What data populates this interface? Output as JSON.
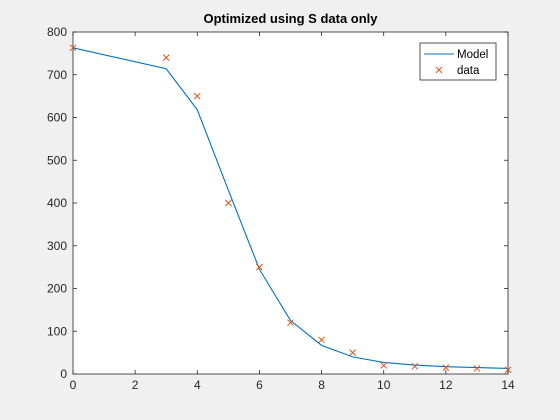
{
  "chart_data": {
    "type": "line",
    "title": "Optimized using S data only",
    "xlabel": "",
    "ylabel": "",
    "xlim": [
      0,
      14
    ],
    "ylim": [
      0,
      800
    ],
    "xticks": [
      0,
      2,
      4,
      6,
      8,
      10,
      12,
      14
    ],
    "yticks": [
      0,
      100,
      200,
      300,
      400,
      500,
      600,
      700,
      800
    ],
    "grid": false,
    "legend_position": "top-right",
    "series": [
      {
        "name": "Model",
        "style": "line",
        "color": "#0072BD",
        "x": [
          0,
          3,
          4,
          5,
          6,
          7,
          8,
          9,
          10,
          11,
          12,
          13,
          14
        ],
        "y": [
          763,
          714,
          618,
          430,
          245,
          125,
          67,
          40,
          27,
          21,
          17,
          15,
          13
        ]
      },
      {
        "name": "data",
        "style": "marker-x",
        "color": "#D95319",
        "x": [
          0,
          3,
          4,
          5,
          6,
          7,
          8,
          9,
          10,
          11,
          12,
          13,
          14
        ],
        "y": [
          763,
          740,
          650,
          400,
          250,
          120,
          80,
          50,
          20,
          18,
          15,
          13,
          10
        ]
      }
    ]
  }
}
